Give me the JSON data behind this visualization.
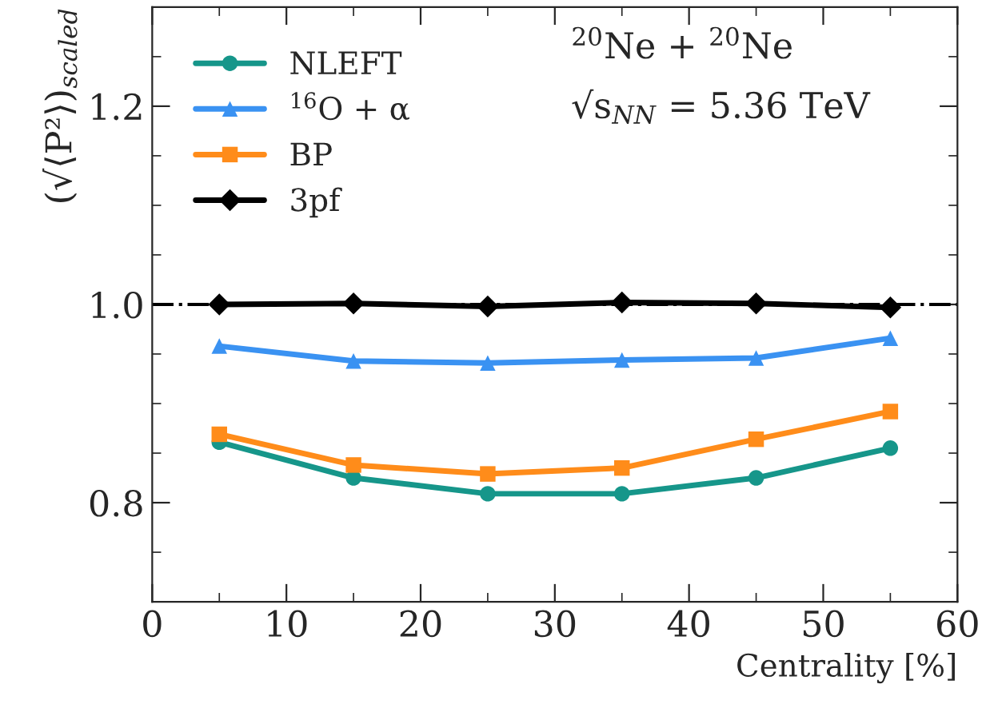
{
  "chart_data": {
    "type": "line",
    "x": [
      5,
      15,
      25,
      35,
      45,
      55
    ],
    "series": [
      {
        "name": "NLEFT",
        "color": "#16968a",
        "marker": "circle",
        "values": [
          0.861,
          0.825,
          0.809,
          0.809,
          0.825,
          0.855
        ]
      },
      {
        "name": "$^{16}$O + α",
        "color": "#3a92f2",
        "marker": "triangle",
        "values": [
          0.958,
          0.943,
          0.941,
          0.944,
          0.946,
          0.966
        ]
      },
      {
        "name": "BP",
        "color": "#ff8c1a",
        "marker": "square",
        "values": [
          0.869,
          0.838,
          0.829,
          0.835,
          0.864,
          0.892
        ]
      },
      {
        "name": "3pf",
        "color": "#000000",
        "marker": "diamond",
        "values": [
          1.0,
          1.001,
          0.998,
          1.002,
          1.001,
          0.997
        ]
      }
    ],
    "xlabel": "Centrality [%]",
    "ylabel": "(√⟨P²⟩)$_{scaled}$",
    "annotations": [
      "$^{20}$Ne + $^{20}$Ne",
      "√s$_{NN}$ = 5.36 TeV"
    ],
    "xlim": [
      0,
      60
    ],
    "xticks": [
      0,
      10,
      20,
      30,
      40,
      50,
      60
    ],
    "ylim": [
      0.7,
      1.3
    ],
    "yticks": [
      0.8,
      {
        "value": 1.0,
        "label": "1.0"
      },
      1.2
    ],
    "ref_lines": [
      {
        "axis": "y",
        "value": 1.0,
        "color": "#000000",
        "line_style": "dashdot"
      }
    ],
    "legend": "top left",
    "grid": false,
    "line_style": "solid"
  }
}
